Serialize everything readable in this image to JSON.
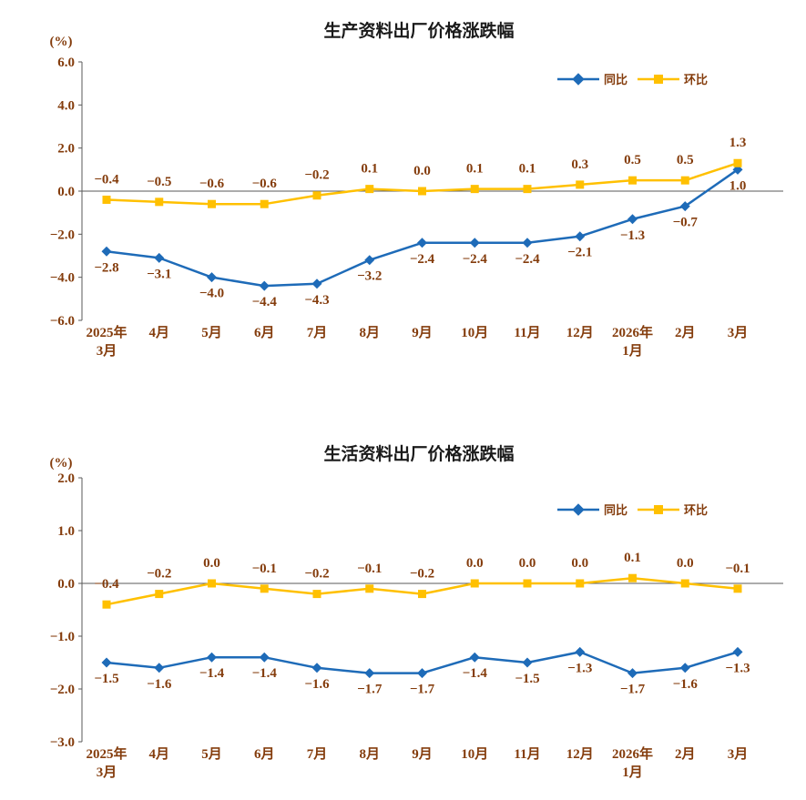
{
  "page": {
    "background": "#ffffff"
  },
  "chart_data": [
    {
      "type": "line",
      "title": "生产资料出厂价格涨跌幅",
      "unit_label": "(%)",
      "xlabel": "",
      "ylabel": "",
      "ylim": [
        -6.0,
        6.0
      ],
      "ytick_step": 2.0,
      "grid": false,
      "legend_position": "top-right",
      "categories": [
        [
          "2025年",
          "3月"
        ],
        [
          "4月"
        ],
        [
          "5月"
        ],
        [
          "6月"
        ],
        [
          "7月"
        ],
        [
          "8月"
        ],
        [
          "9月"
        ],
        [
          "10月"
        ],
        [
          "11月"
        ],
        [
          "12月"
        ],
        [
          "2026年",
          "1月"
        ],
        [
          "2月"
        ],
        [
          "3月"
        ]
      ],
      "series": [
        {
          "name": "同比",
          "color": "#1E6BB8",
          "marker": "diamond",
          "label_side": "below",
          "values": [
            -2.8,
            -3.1,
            -4.0,
            -4.4,
            -4.3,
            -3.2,
            -2.4,
            -2.4,
            -2.4,
            -2.1,
            -1.3,
            -0.7,
            1.0
          ]
        },
        {
          "name": "环比",
          "color": "#FFC000",
          "marker": "square",
          "label_side": "above",
          "values": [
            -0.4,
            -0.5,
            -0.6,
            -0.6,
            -0.2,
            0.1,
            0.0,
            0.1,
            0.1,
            0.3,
            0.5,
            0.5,
            1.3
          ]
        }
      ]
    },
    {
      "type": "line",
      "title": "生活资料出厂价格涨跌幅",
      "unit_label": "(%)",
      "xlabel": "",
      "ylabel": "",
      "ylim": [
        -3.0,
        2.0
      ],
      "ytick_step": 1.0,
      "grid": false,
      "legend_position": "top-right",
      "categories": [
        [
          "2025年",
          "3月"
        ],
        [
          "4月"
        ],
        [
          "5月"
        ],
        [
          "6月"
        ],
        [
          "7月"
        ],
        [
          "8月"
        ],
        [
          "9月"
        ],
        [
          "10月"
        ],
        [
          "11月"
        ],
        [
          "12月"
        ],
        [
          "2026年",
          "1月"
        ],
        [
          "2月"
        ],
        [
          "3月"
        ]
      ],
      "series": [
        {
          "name": "同比",
          "color": "#1E6BB8",
          "marker": "diamond",
          "label_side": "below",
          "values": [
            -1.5,
            -1.6,
            -1.4,
            -1.4,
            -1.6,
            -1.7,
            -1.7,
            -1.4,
            -1.5,
            -1.3,
            -1.7,
            -1.6,
            -1.3
          ]
        },
        {
          "name": "环比",
          "color": "#FFC000",
          "marker": "square",
          "label_side": "above",
          "values": [
            -0.4,
            -0.2,
            0.0,
            -0.1,
            -0.2,
            -0.1,
            -0.2,
            0.0,
            0.0,
            0.0,
            0.1,
            0.0,
            -0.1
          ]
        }
      ]
    }
  ]
}
